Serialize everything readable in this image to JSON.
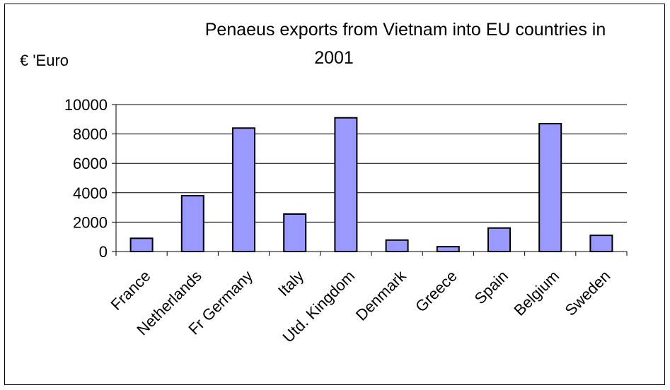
{
  "chart_data": {
    "type": "bar",
    "title_line1": "Penaeus exports from Vietnam into EU countries in",
    "title_line2": "2001",
    "ylabel": "€ 'Euro",
    "xlabel": "",
    "categories": [
      "France",
      "Netherlands",
      "Fr Germany",
      "Italy",
      "Utd. Kingdom",
      "Denmark",
      "Greece",
      "Spain",
      "Belgium",
      "Sweden"
    ],
    "values": [
      900,
      3800,
      8400,
      2550,
      9100,
      780,
      330,
      1600,
      8700,
      1100
    ],
    "ylim": [
      0,
      10000
    ],
    "yticks": [
      "0",
      "2000",
      "4000",
      "6000",
      "8000",
      "10000"
    ],
    "grid": true,
    "legend": "none",
    "colors": {
      "bar_fill": "#9999ff",
      "bar_stroke": "#000000",
      "grid": "#000000",
      "text": "#000000"
    }
  }
}
